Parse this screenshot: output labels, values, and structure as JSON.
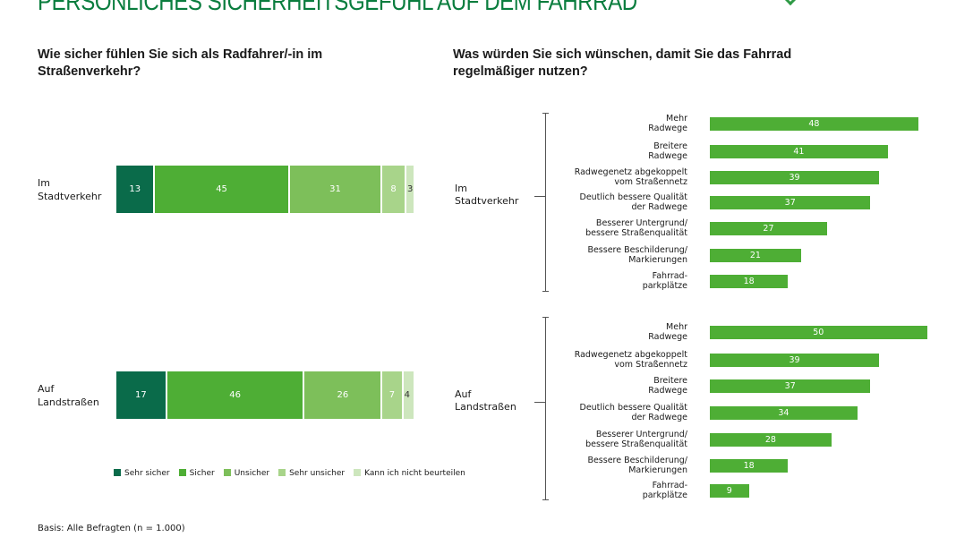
{
  "title": "PERSÖNLICHES SICHERHEITSGEFÜHL AUF DEM FAHRRAD",
  "footnote": "Basis: Alle Befragten (n = 1.000)",
  "chart_data": [
    {
      "type": "bar",
      "stacked": true,
      "orientation": "horizontal",
      "title": "Wie sicher fühlen Sie sich als Radfahrer/-in im Straßenverkehr?",
      "categories": [
        "Im Stadtverkehr",
        "Auf Landstraßen"
      ],
      "legend_position": "bottom",
      "series": [
        {
          "name": "Sehr sicher",
          "color": "#0a6b4a",
          "values": [
            13,
            17
          ]
        },
        {
          "name": "Sicher",
          "color": "#4eae35",
          "values": [
            45,
            46
          ]
        },
        {
          "name": "Unsicher",
          "color": "#7dbf5a",
          "values": [
            31,
            26
          ]
        },
        {
          "name": "Sehr unsicher",
          "color": "#a8d48a",
          "values": [
            8,
            7
          ]
        },
        {
          "name": "Kann ich nicht beurteilen",
          "color": "#cde6bd",
          "values": [
            3,
            4
          ]
        }
      ]
    },
    {
      "type": "bar",
      "orientation": "horizontal",
      "title": "Was würden Sie sich wünschen, damit Sie das Fahrrad regelmäßiger nutzen?",
      "color": "#4eae35",
      "groups": [
        {
          "name": "Im Stadtverkehr",
          "categories": [
            "Mehr Radwege",
            "Breitere Radwege",
            "Radwegenetz abgekoppelt vom Straßennetz",
            "Deutlich bessere Qualität der Radwege",
            "Besserer Untergrund/ bessere Straßenqualität",
            "Bessere Beschilderung/ Markierungen",
            "Fahrrad-parkplätze"
          ],
          "values": [
            48,
            41,
            39,
            37,
            27,
            21,
            18
          ]
        },
        {
          "name": "Auf Landstraßen",
          "categories": [
            "Mehr Radwege",
            "Radwegenetz abgekoppelt vom Straßennetz",
            "Breitere Radwege",
            "Deutlich bessere Qualität der Radwege",
            "Besserer Untergrund/ bessere Straßenqualität",
            "Bessere Beschilderung/ Markierungen",
            "Fahrrad-parkplätze"
          ],
          "values": [
            50,
            39,
            37,
            34,
            28,
            18,
            9
          ]
        }
      ]
    }
  ]
}
